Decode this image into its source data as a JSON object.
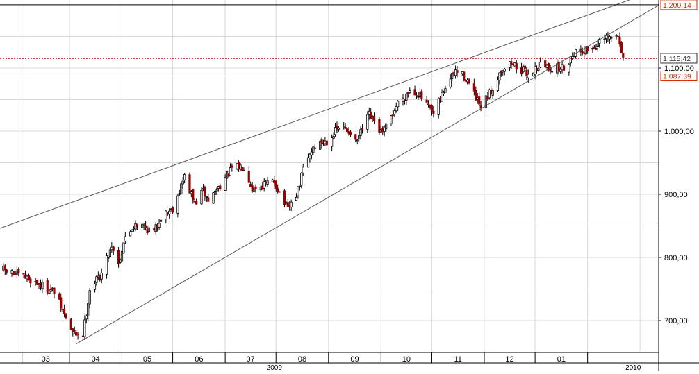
{
  "chart_data": {
    "type": "candlestick",
    "title": "",
    "xlabel": "",
    "ylabel": "",
    "ylim": [
      650,
      1210
    ],
    "grid": true,
    "y_ticks": [
      "700,00",
      "800,00",
      "900,00",
      "1.000,00",
      "1.100,00"
    ],
    "month_labels": [
      "03",
      "04",
      "05",
      "06",
      "07",
      "08",
      "09",
      "10",
      "11",
      "12",
      "01"
    ],
    "year_labels": [
      "2009",
      "2010"
    ],
    "price_labels": [
      {
        "text": "1.200,14",
        "value": 1200.14,
        "style": "boxed",
        "color": "#cc3300"
      },
      {
        "text": "1.115,42",
        "value": 1115.42,
        "style": "boxed",
        "color": "#333333"
      },
      {
        "text": "1.087,39",
        "value": 1087.39,
        "style": "boxed",
        "color": "#cc3300"
      }
    ],
    "horizontal_lines": [
      {
        "value": 1200.14,
        "style": "solid",
        "color": "#000000"
      },
      {
        "value": 1115.42,
        "style": "dotted",
        "color": "#cc0000"
      },
      {
        "value": 1087.39,
        "style": "solid",
        "color": "#000000"
      }
    ],
    "trendlines": [
      {
        "name": "upper channel",
        "from": {
          "date": "2009-01-21",
          "value": 848
        },
        "to": {
          "date": "2010-01-28",
          "value": 1210
        }
      },
      {
        "name": "lower channel",
        "from": {
          "date": "2009-03-05",
          "value": 663
        },
        "to": {
          "date": "2010-01-28",
          "value": 1176
        }
      }
    ],
    "series": [
      {
        "name": "",
        "anchor_closes": [
          [
            "2009-01-21",
            780
          ],
          [
            "2009-02-06",
            765
          ],
          [
            "2009-02-20",
            745
          ],
          [
            "2009-03-03",
            680
          ],
          [
            "2009-03-09",
            678
          ],
          [
            "2009-03-13",
            750
          ],
          [
            "2009-03-20",
            775
          ],
          [
            "2009-03-26",
            820
          ],
          [
            "2009-03-30",
            790
          ],
          [
            "2009-04-02",
            825
          ],
          [
            "2009-04-09",
            855
          ],
          [
            "2009-04-20",
            840
          ],
          [
            "2009-04-24",
            865
          ],
          [
            "2009-05-01",
            878
          ],
          [
            "2009-05-08",
            928
          ],
          [
            "2009-05-14",
            885
          ],
          [
            "2009-05-19",
            905
          ],
          [
            "2009-05-22",
            890
          ],
          [
            "2009-05-29",
            915
          ],
          [
            "2009-06-05",
            940
          ],
          [
            "2009-06-12",
            945
          ],
          [
            "2009-06-17",
            910
          ],
          [
            "2009-06-24",
            915
          ],
          [
            "2009-06-30",
            920
          ],
          [
            "2009-07-08",
            875
          ],
          [
            "2009-07-14",
            905
          ],
          [
            "2009-07-17",
            940
          ],
          [
            "2009-07-23",
            975
          ],
          [
            "2009-07-31",
            985
          ],
          [
            "2009-08-07",
            1005
          ],
          [
            "2009-08-14",
            1000
          ],
          [
            "2009-08-17",
            980
          ],
          [
            "2009-08-25",
            1025
          ],
          [
            "2009-09-02",
            995
          ],
          [
            "2009-09-11",
            1045
          ],
          [
            "2009-09-18",
            1065
          ],
          [
            "2009-09-23",
            1060
          ],
          [
            "2009-10-02",
            1025
          ],
          [
            "2009-10-09",
            1070
          ],
          [
            "2009-10-15",
            1095
          ],
          [
            "2009-10-21",
            1085
          ],
          [
            "2009-10-30",
            1035
          ],
          [
            "2009-11-06",
            1068
          ],
          [
            "2009-11-11",
            1098
          ],
          [
            "2009-11-17",
            1108
          ],
          [
            "2009-11-27",
            1090
          ],
          [
            "2009-12-04",
            1105
          ],
          [
            "2009-12-10",
            1100
          ],
          [
            "2009-12-18",
            1100
          ],
          [
            "2009-12-24",
            1125
          ],
          [
            "2010-01-04",
            1132
          ],
          [
            "2010-01-11",
            1145
          ],
          [
            "2010-01-19",
            1150
          ],
          [
            "2010-01-21",
            1130
          ],
          [
            "2010-01-22",
            1115
          ]
        ]
      }
    ]
  }
}
